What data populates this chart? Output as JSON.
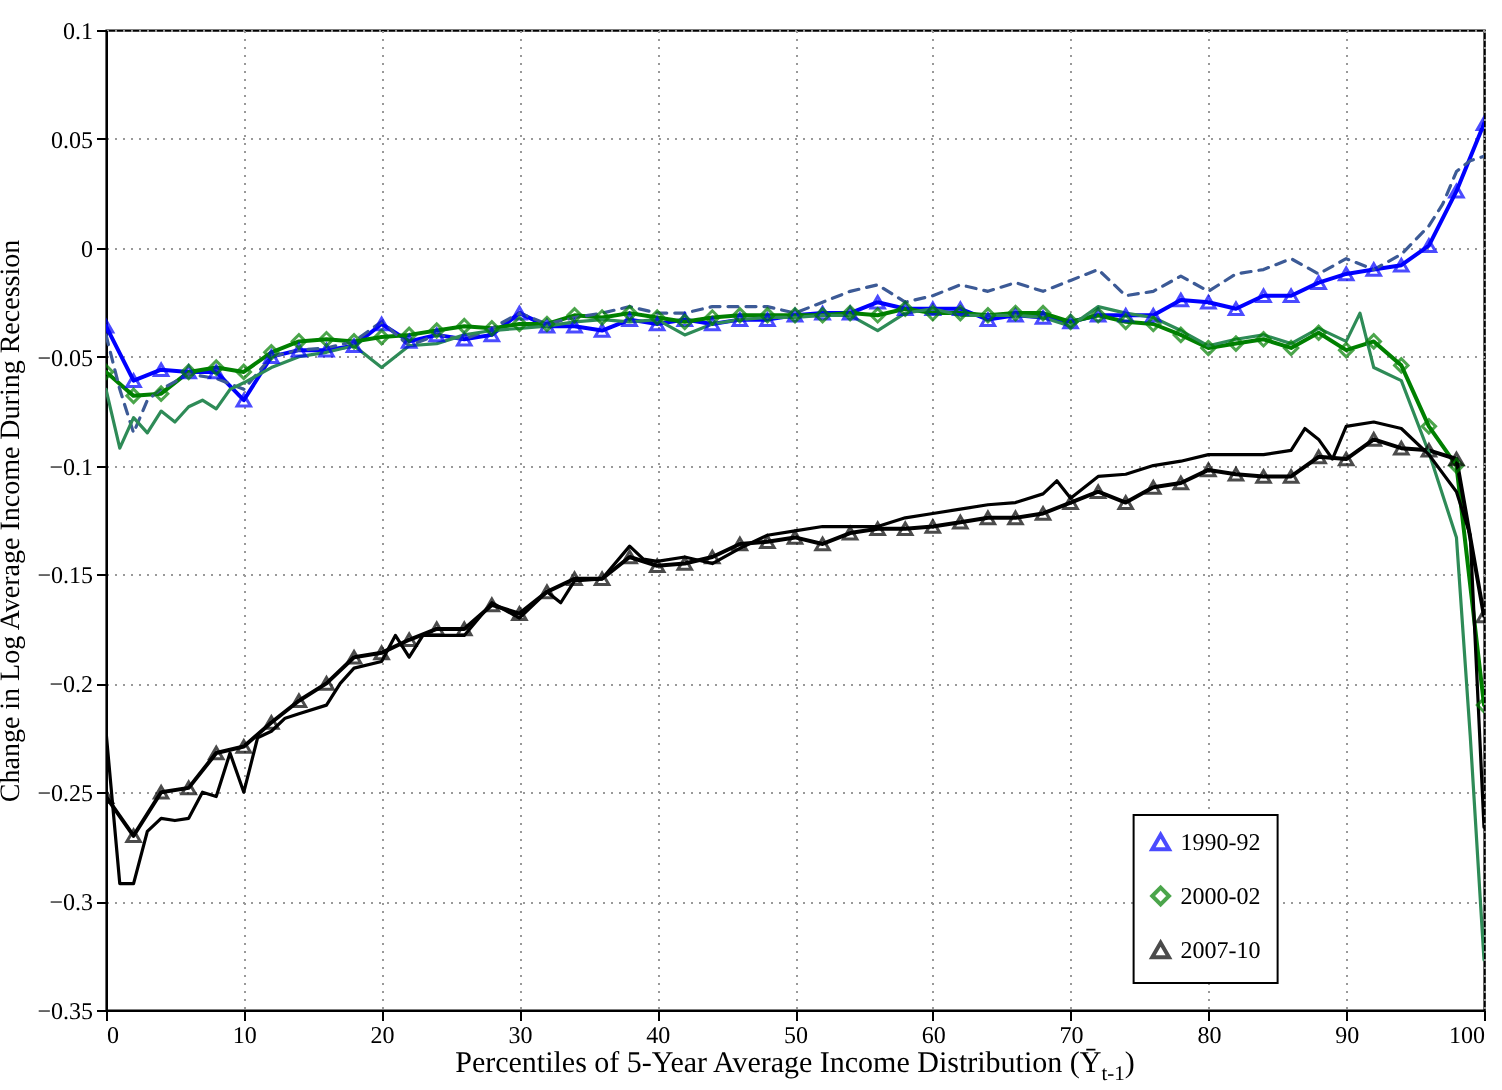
{
  "chart_data": {
    "type": "line",
    "xlabel": "Percentiles of 5-Year Average Income Distribution (Ȳ$_{t-1}$)",
    "ylabel": "Change in Log Average Income During Recession",
    "x": [
      0,
      2,
      4,
      6,
      8,
      10,
      12,
      14,
      16,
      18,
      20,
      22,
      24,
      26,
      28,
      30,
      32,
      34,
      36,
      38,
      40,
      42,
      44,
      46,
      48,
      50,
      52,
      54,
      56,
      58,
      60,
      62,
      64,
      66,
      68,
      70,
      72,
      74,
      76,
      78,
      80,
      82,
      84,
      86,
      88,
      90,
      92,
      94,
      96,
      98,
      100
    ],
    "xlim": [
      0,
      100
    ],
    "xticks": [
      0,
      10,
      20,
      30,
      40,
      50,
      60,
      70,
      80,
      90,
      100
    ],
    "ylim": [
      -0.35,
      0.1
    ],
    "yticks": [
      -0.35,
      -0.3,
      -0.25,
      -0.2,
      -0.15,
      -0.1,
      -0.05,
      0,
      0.05,
      0.1
    ],
    "grid": true,
    "legend": "bottom right",
    "series": [
      {
        "name": "1990-92",
        "color": "#0000ff",
        "marker": "triangle",
        "line_style": "solid",
        "values": [
          -0.036,
          -0.061,
          -0.056,
          -0.057,
          -0.057,
          -0.07,
          -0.05,
          -0.047,
          -0.047,
          -0.045,
          -0.035,
          -0.043,
          -0.04,
          -0.042,
          -0.04,
          -0.03,
          -0.036,
          -0.036,
          -0.038,
          -0.033,
          -0.035,
          -0.033,
          -0.035,
          -0.033,
          -0.033,
          -0.031,
          -0.03,
          -0.03,
          -0.025,
          -0.028,
          -0.028,
          -0.028,
          -0.033,
          -0.031,
          -0.032,
          -0.034,
          -0.031,
          -0.031,
          -0.031,
          -0.024,
          -0.025,
          -0.028,
          -0.022,
          -0.022,
          -0.016,
          -0.012,
          -0.01,
          -0.008,
          0.001,
          0.026,
          0.057
        ]
      },
      {
        "name": "2000-02",
        "color": "#008000",
        "marker": "diamond",
        "line_style": "solid",
        "values": [
          -0.057,
          -0.068,
          -0.067,
          -0.057,
          -0.055,
          -0.057,
          -0.048,
          -0.043,
          -0.042,
          -0.043,
          -0.041,
          -0.04,
          -0.038,
          -0.036,
          -0.037,
          -0.035,
          -0.035,
          -0.031,
          -0.032,
          -0.03,
          -0.032,
          -0.034,
          -0.032,
          -0.031,
          -0.031,
          -0.031,
          -0.031,
          -0.03,
          -0.031,
          -0.028,
          -0.03,
          -0.03,
          -0.031,
          -0.03,
          -0.03,
          -0.034,
          -0.031,
          -0.034,
          -0.035,
          -0.04,
          -0.046,
          -0.044,
          -0.042,
          -0.046,
          -0.039,
          -0.047,
          -0.043,
          -0.054,
          -0.082,
          -0.1,
          -0.21
        ]
      },
      {
        "name": "2007-10",
        "color": "#000000",
        "marker": "triangle",
        "line_style": "solid",
        "values": [
          -0.252,
          -0.27,
          -0.25,
          -0.248,
          -0.232,
          -0.229,
          -0.218,
          -0.208,
          -0.2,
          -0.188,
          -0.186,
          -0.18,
          -0.175,
          -0.175,
          -0.164,
          -0.168,
          -0.158,
          -0.152,
          -0.152,
          -0.142,
          -0.146,
          -0.145,
          -0.142,
          -0.136,
          -0.135,
          -0.133,
          -0.136,
          -0.131,
          -0.129,
          -0.129,
          -0.128,
          -0.126,
          -0.124,
          -0.124,
          -0.122,
          -0.117,
          -0.112,
          -0.117,
          -0.11,
          -0.108,
          -0.102,
          -0.104,
          -0.105,
          -0.105,
          -0.096,
          -0.097,
          -0.088,
          -0.092,
          -0.093,
          -0.097,
          -0.169
        ]
      },
      {
        "color": "#3c5a96",
        "marker": "none",
        "line_style": "dashed",
        "x": [
          0,
          1,
          2,
          3,
          4,
          6,
          8,
          10,
          12,
          14,
          16,
          18,
          20,
          22,
          24,
          26,
          28,
          30,
          32,
          34,
          36,
          38,
          40,
          42,
          44,
          46,
          48,
          50,
          52,
          54,
          56,
          58,
          60,
          62,
          64,
          66,
          68,
          70,
          72,
          74,
          76,
          78,
          80,
          82,
          84,
          86,
          88,
          90,
          92,
          94,
          96,
          97,
          98,
          99,
          100
        ],
        "values": [
          -0.04,
          -0.065,
          -0.085,
          -0.07,
          -0.065,
          -0.058,
          -0.06,
          -0.065,
          -0.05,
          -0.047,
          -0.046,
          -0.043,
          -0.034,
          -0.045,
          -0.04,
          -0.042,
          -0.037,
          -0.03,
          -0.035,
          -0.032,
          -0.03,
          -0.027,
          -0.03,
          -0.03,
          -0.027,
          -0.027,
          -0.027,
          -0.03,
          -0.025,
          -0.02,
          -0.017,
          -0.025,
          -0.022,
          -0.017,
          -0.02,
          -0.016,
          -0.02,
          -0.015,
          -0.01,
          -0.022,
          -0.02,
          -0.013,
          -0.02,
          -0.012,
          -0.01,
          -0.005,
          -0.012,
          -0.005,
          -0.01,
          -0.003,
          0.01,
          0.02,
          0.035,
          0.04,
          0.042
        ]
      },
      {
        "color": "#2e8b57",
        "marker": "none",
        "line_style": "solid",
        "x": [
          0,
          1,
          2,
          3,
          4,
          5,
          6,
          7,
          8,
          9,
          10,
          12,
          14,
          16,
          18,
          20,
          22,
          24,
          26,
          28,
          30,
          32,
          34,
          36,
          38,
          40,
          42,
          44,
          46,
          48,
          50,
          52,
          54,
          56,
          58,
          60,
          62,
          64,
          66,
          68,
          70,
          72,
          74,
          76,
          78,
          80,
          82,
          84,
          86,
          88,
          90,
          91,
          92,
          94,
          96,
          98,
          99,
          100
        ],
        "values": [
          -0.065,
          -0.092,
          -0.078,
          -0.085,
          -0.075,
          -0.08,
          -0.073,
          -0.07,
          -0.074,
          -0.065,
          -0.062,
          -0.055,
          -0.05,
          -0.048,
          -0.045,
          -0.055,
          -0.045,
          -0.044,
          -0.04,
          -0.038,
          -0.037,
          -0.036,
          -0.034,
          -0.033,
          -0.034,
          -0.033,
          -0.04,
          -0.035,
          -0.033,
          -0.032,
          -0.032,
          -0.031,
          -0.031,
          -0.038,
          -0.03,
          -0.028,
          -0.031,
          -0.031,
          -0.031,
          -0.032,
          -0.036,
          -0.027,
          -0.03,
          -0.032,
          -0.038,
          -0.045,
          -0.042,
          -0.04,
          -0.044,
          -0.037,
          -0.043,
          -0.03,
          -0.055,
          -0.061,
          -0.094,
          -0.133,
          -0.224,
          -0.327
        ]
      },
      {
        "color": "#000000",
        "marker": "none",
        "line_style": "solid",
        "x": [
          0,
          1,
          2,
          3,
          4,
          5,
          6,
          7,
          8,
          9,
          10,
          11,
          12,
          13,
          14,
          16,
          17,
          18,
          20,
          21,
          22,
          23,
          24,
          26,
          28,
          30,
          32,
          33,
          34,
          36,
          38,
          39,
          40,
          42,
          44,
          46,
          48,
          50,
          52,
          54,
          56,
          58,
          60,
          62,
          64,
          66,
          68,
          69,
          70,
          72,
          74,
          76,
          78,
          80,
          82,
          84,
          86,
          87,
          88,
          89,
          90,
          92,
          94,
          96,
          98,
          99,
          100
        ],
        "values": [
          -0.222,
          -0.292,
          -0.292,
          -0.268,
          -0.262,
          -0.263,
          -0.262,
          -0.25,
          -0.252,
          -0.232,
          -0.25,
          -0.225,
          -0.222,
          -0.216,
          -0.214,
          -0.21,
          -0.2,
          -0.193,
          -0.19,
          -0.178,
          -0.188,
          -0.178,
          -0.178,
          -0.178,
          -0.163,
          -0.17,
          -0.158,
          -0.163,
          -0.153,
          -0.152,
          -0.137,
          -0.143,
          -0.144,
          -0.142,
          -0.145,
          -0.138,
          -0.132,
          -0.13,
          -0.128,
          -0.128,
          -0.128,
          -0.124,
          -0.122,
          -0.12,
          -0.118,
          -0.117,
          -0.113,
          -0.107,
          -0.115,
          -0.105,
          -0.104,
          -0.1,
          -0.098,
          -0.095,
          -0.095,
          -0.095,
          -0.093,
          -0.083,
          -0.088,
          -0.097,
          -0.082,
          -0.08,
          -0.083,
          -0.095,
          -0.112,
          -0.132,
          -0.266
        ]
      }
    ]
  }
}
